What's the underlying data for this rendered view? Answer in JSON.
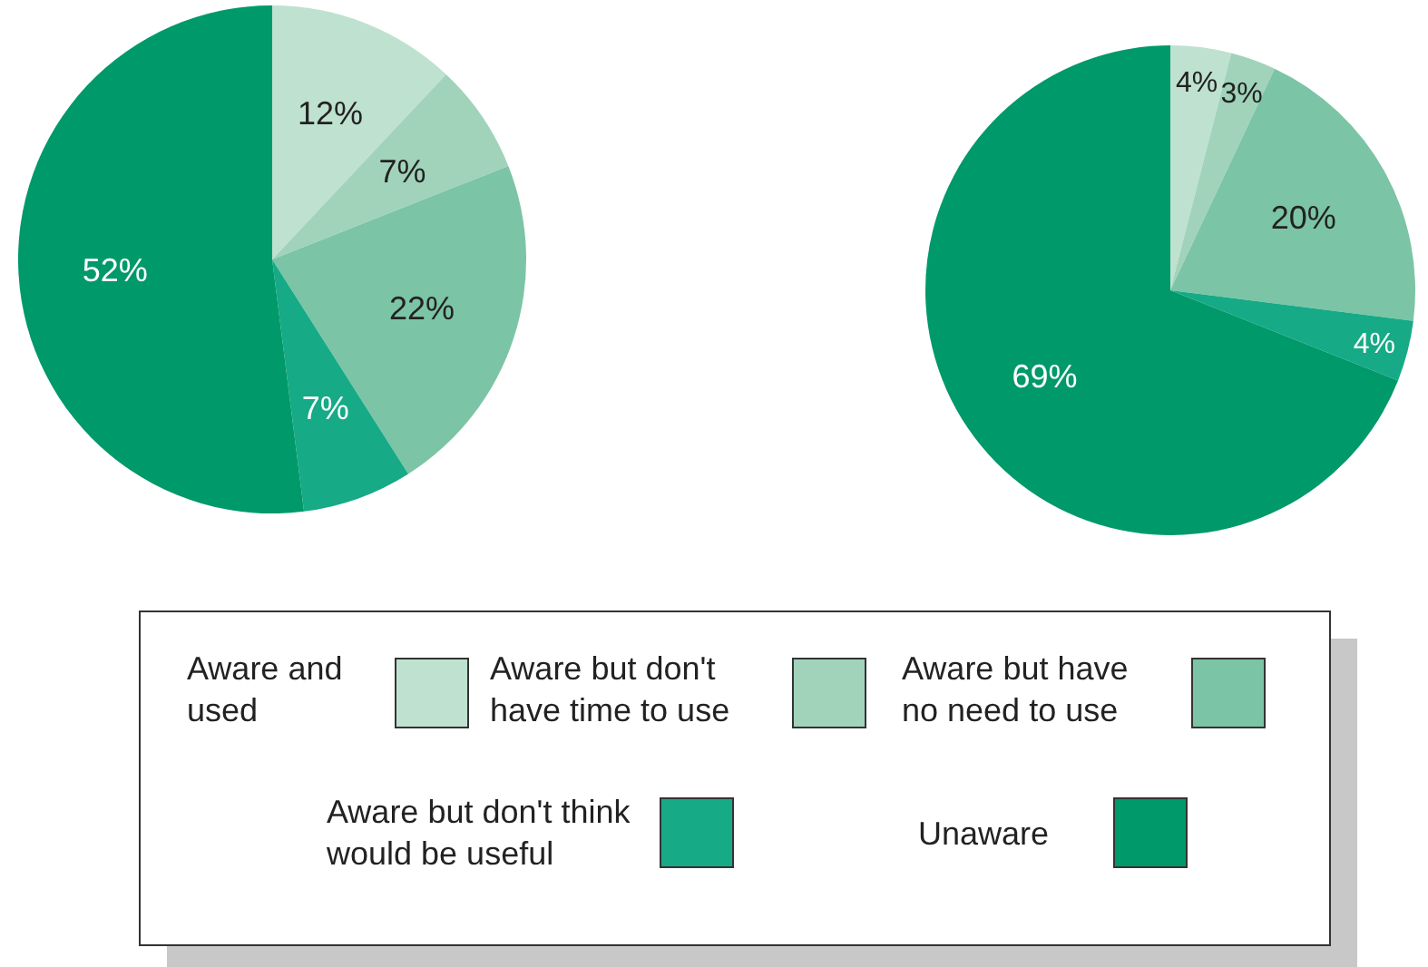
{
  "chart_data": [
    {
      "type": "pie",
      "categories": [
        "Aware and used",
        "Aware but don't have time to use",
        "Aware but have no need to use",
        "Aware but don't think would be useful",
        "Unaware"
      ],
      "values": [
        12,
        7,
        22,
        7,
        52
      ],
      "value_labels": [
        "12%",
        "7%",
        "22%",
        "7%",
        "52%"
      ],
      "colors": [
        "#bfe1d0",
        "#a1d3bb",
        "#7cc4a6",
        "#16aa86",
        "#00996a"
      ],
      "legend": "bottom"
    },
    {
      "type": "pie",
      "categories": [
        null,
        null,
        null,
        null,
        null
      ],
      "values": [
        4,
        3,
        20,
        4,
        69
      ],
      "value_labels": [
        "4%",
        "3%",
        "20%",
        "4%",
        "69%"
      ],
      "colors": [
        "#bfe1d0",
        "#a1d3bb",
        "#7cc4a6",
        "#16aa86",
        "#00996a"
      ]
    }
  ]
}
